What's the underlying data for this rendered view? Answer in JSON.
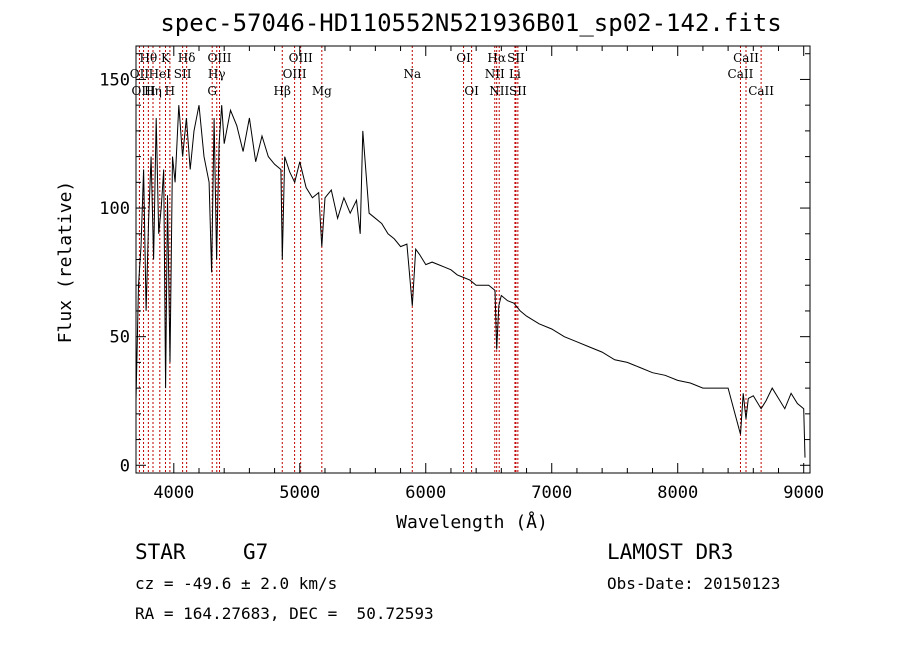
{
  "chart_data": {
    "type": "line",
    "title": "spec-57046-HD110552N521936B01_sp02-142.fits",
    "xlabel": "Wavelength (Å)",
    "ylabel": "Flux (relative)",
    "xlim": [
      3700,
      9050
    ],
    "ylim": [
      -3,
      163
    ],
    "xticks": [
      4000,
      5000,
      6000,
      7000,
      8000,
      9000
    ],
    "yticks": [
      0,
      50,
      100,
      150
    ],
    "spectrum": {
      "name": "flux",
      "x": [
        3700,
        3720,
        3740,
        3760,
        3780,
        3800,
        3820,
        3840,
        3860,
        3880,
        3900,
        3920,
        3935,
        3950,
        3970,
        3990,
        4010,
        4040,
        4070,
        4100,
        4130,
        4160,
        4200,
        4240,
        4280,
        4300,
        4320,
        4340,
        4360,
        4380,
        4400,
        4450,
        4500,
        4550,
        4600,
        4650,
        4700,
        4750,
        4800,
        4850,
        4861,
        4880,
        4920,
        4960,
        5000,
        5050,
        5100,
        5150,
        5175,
        5200,
        5250,
        5300,
        5350,
        5400,
        5450,
        5480,
        5500,
        5550,
        5600,
        5650,
        5700,
        5750,
        5800,
        5850,
        5893,
        5920,
        5950,
        6000,
        6050,
        6100,
        6150,
        6200,
        6250,
        6300,
        6350,
        6400,
        6450,
        6500,
        6550,
        6563,
        6580,
        6600,
        6650,
        6700,
        6750,
        6800,
        6900,
        7000,
        7100,
        7200,
        7300,
        7400,
        7500,
        7600,
        7700,
        7800,
        7900,
        8000,
        8100,
        8200,
        8300,
        8400,
        8498,
        8520,
        8542,
        8560,
        8600,
        8662,
        8700,
        8750,
        8800,
        8850,
        8900,
        8950,
        9000,
        9010
      ],
      "y": [
        25,
        70,
        85,
        115,
        60,
        95,
        120,
        80,
        135,
        90,
        100,
        115,
        30,
        105,
        40,
        120,
        110,
        140,
        120,
        135,
        115,
        130,
        140,
        120,
        110,
        75,
        135,
        80,
        125,
        140,
        125,
        138,
        132,
        122,
        135,
        118,
        128,
        120,
        117,
        115,
        80,
        120,
        114,
        110,
        118,
        108,
        104,
        106,
        85,
        104,
        107,
        96,
        104,
        98,
        103,
        90,
        130,
        98,
        96,
        94,
        90,
        88,
        85,
        86,
        62,
        84,
        82,
        78,
        79,
        78,
        77,
        76,
        74,
        73,
        72,
        70,
        70,
        70,
        68,
        45,
        62,
        66,
        64,
        63,
        60,
        58,
        55,
        53,
        50,
        48,
        46,
        44,
        41,
        40,
        38,
        36,
        35,
        33,
        32,
        30,
        30,
        30,
        12,
        28,
        18,
        26,
        27,
        22,
        25,
        30,
        26,
        22,
        28,
        24,
        22,
        3
      ]
    },
    "lines": [
      {
        "label": "Hθ",
        "wave": 3798,
        "row": 1
      },
      {
        "label": "OII",
        "wave": 3727,
        "row": 2
      },
      {
        "label": "OIII",
        "wave": 3760,
        "row": 3
      },
      {
        "label": "K",
        "wave": 3934,
        "row": 1
      },
      {
        "label": "HeI",
        "wave": 3889,
        "row": 2
      },
      {
        "label": "Hη",
        "wave": 3835,
        "row": 3
      },
      {
        "label": "Hδ",
        "wave": 4102,
        "row": 1
      },
      {
        "label": "SII",
        "wave": 4070,
        "row": 2
      },
      {
        "label": "H",
        "wave": 3969,
        "row": 3
      },
      {
        "label": "OIII",
        "wave": 4363,
        "row": 1
      },
      {
        "label": "Hγ",
        "wave": 4341,
        "row": 2
      },
      {
        "label": "G",
        "wave": 4305,
        "row": 3
      },
      {
        "label": "OIII",
        "wave": 5007,
        "row": 1
      },
      {
        "label": "OIII",
        "wave": 4959,
        "row": 2
      },
      {
        "label": "Hβ",
        "wave": 4861,
        "row": 3
      },
      {
        "label": "Mg",
        "wave": 5175,
        "row": 3
      },
      {
        "label": "Na",
        "wave": 5893,
        "row": 2
      },
      {
        "label": "OI",
        "wave": 6300,
        "row": 1
      },
      {
        "label": "OI",
        "wave": 6364,
        "row": 3
      },
      {
        "label": "Hα",
        "wave": 6563,
        "row": 1
      },
      {
        "label": "SII",
        "wave": 6716,
        "row": 1
      },
      {
        "label": "NII",
        "wave": 6548,
        "row": 2
      },
      {
        "label": "Li",
        "wave": 6708,
        "row": 2
      },
      {
        "label": "NII",
        "wave": 6583,
        "row": 3
      },
      {
        "label": "SII",
        "wave": 6731,
        "row": 3
      },
      {
        "label": "CaII",
        "wave": 8542,
        "row": 1
      },
      {
        "label": "CaII",
        "wave": 8498,
        "row": 2
      },
      {
        "label": "CaII",
        "wave": 8662,
        "row": 3
      }
    ]
  },
  "info": {
    "class_label": "STAR",
    "subclass": "G7",
    "survey": "LAMOST DR3",
    "cz": "cz = -49.6 ± 2.0 km/s",
    "obs_date": "Obs-Date: 20150123",
    "coords": "RA = 164.27683, DEC =  50.72593"
  },
  "colors": {
    "spectrum": "#000000",
    "line_marker": "#c00000",
    "axis": "#000000"
  }
}
